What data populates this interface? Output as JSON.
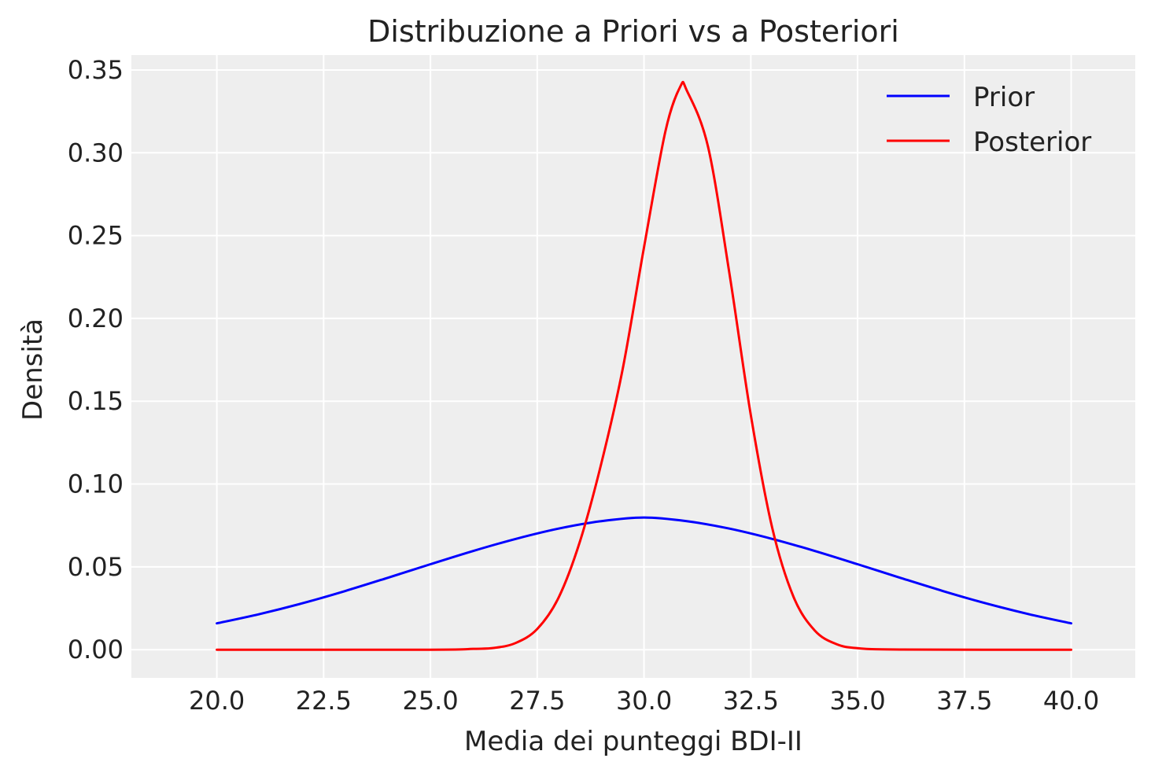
{
  "chart_data": {
    "type": "line",
    "title": "Distribuzione a Priori vs a Posteriori",
    "xlabel": "Media dei punteggi BDI-II",
    "ylabel": "Densità",
    "xlim": [
      18,
      41.5
    ],
    "ylim": [
      -0.017,
      0.359
    ],
    "xticks": [
      "20.0",
      "22.5",
      "25.0",
      "27.5",
      "30.0",
      "32.5",
      "35.0",
      "37.5",
      "40.0"
    ],
    "yticks": [
      "0.00",
      "0.05",
      "0.10",
      "0.15",
      "0.20",
      "0.25",
      "0.30",
      "0.35"
    ],
    "grid": true,
    "legend_position": "top-right",
    "series": [
      {
        "name": "Prior",
        "color": "#0000ff",
        "x": [
          20,
          21,
          22,
          23,
          24,
          25,
          26,
          27,
          28,
          29,
          30,
          31,
          32,
          33,
          34,
          35,
          36,
          37,
          38,
          39,
          40
        ],
        "values": [
          0.0159,
          0.0215,
          0.028,
          0.0354,
          0.0434,
          0.0516,
          0.0596,
          0.0669,
          0.0731,
          0.0776,
          0.0798,
          0.0776,
          0.0731,
          0.0669,
          0.0596,
          0.0516,
          0.0434,
          0.0354,
          0.028,
          0.0215,
          0.0159
        ]
      },
      {
        "name": "Posterior",
        "color": "#ff0000",
        "x": [
          20,
          25,
          26,
          26.5,
          27,
          27.5,
          28,
          28.5,
          29,
          29.5,
          30,
          30.5,
          30.85,
          31,
          31.5,
          32,
          32.5,
          33,
          33.5,
          34,
          34.5,
          35,
          36,
          40
        ],
        "values": [
          0.0,
          0.0,
          0.0005,
          0.0011,
          0.0041,
          0.0125,
          0.0314,
          0.0653,
          0.1124,
          0.1693,
          0.2429,
          0.3128,
          0.34,
          0.3377,
          0.3035,
          0.2271,
          0.1417,
          0.0737,
          0.0319,
          0.0115,
          0.0034,
          0.0009,
          0.0001,
          0.0
        ]
      }
    ]
  }
}
